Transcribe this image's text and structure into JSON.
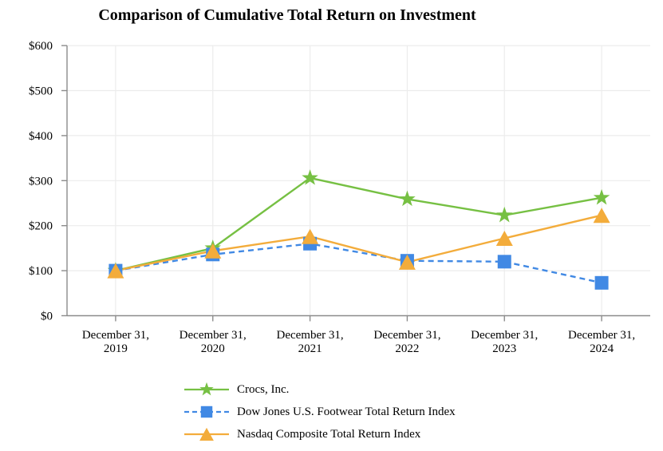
{
  "chart_data": {
    "type": "line",
    "title": "Comparison of Cumulative Total Return on Investment",
    "xlabel": "",
    "ylabel": "",
    "categories": [
      "December 31,\n2019",
      "December 31,\n2020",
      "December 31,\n2021",
      "December 31,\n2022",
      "December 31,\n2023",
      "December 31,\n2024"
    ],
    "series": [
      {
        "id": "crocs",
        "name": "Crocs, Inc.",
        "values": [
          100,
          150,
          306,
          259,
          223,
          262
        ],
        "color": "#76C043",
        "marker": "star",
        "line_style": "solid"
      },
      {
        "id": "dow-jones-us-footwear",
        "name": "Dow Jones U.S. Footwear Total Return Index",
        "values": [
          100,
          136,
          160,
          122,
          120,
          73
        ],
        "color": "#4189E4",
        "marker": "square",
        "line_style": "dashed"
      },
      {
        "id": "nasdaq-composite",
        "name": "Nasdaq Composite Total Return Index",
        "values": [
          100,
          144,
          176,
          119,
          172,
          223
        ],
        "color": "#F3AC3B",
        "marker": "triangle",
        "line_style": "solid"
      }
    ],
    "y_ticks": [
      "$0",
      "$100",
      "$200",
      "$300",
      "$400",
      "$500",
      "$600"
    ],
    "ylim": [
      0,
      600
    ],
    "grid": true,
    "legend_position": "bottom-left",
    "colors": {
      "grid": "#ECECEC",
      "axis": "#8C8C8C",
      "text": "#000000",
      "background": "#FFFFFF"
    }
  }
}
